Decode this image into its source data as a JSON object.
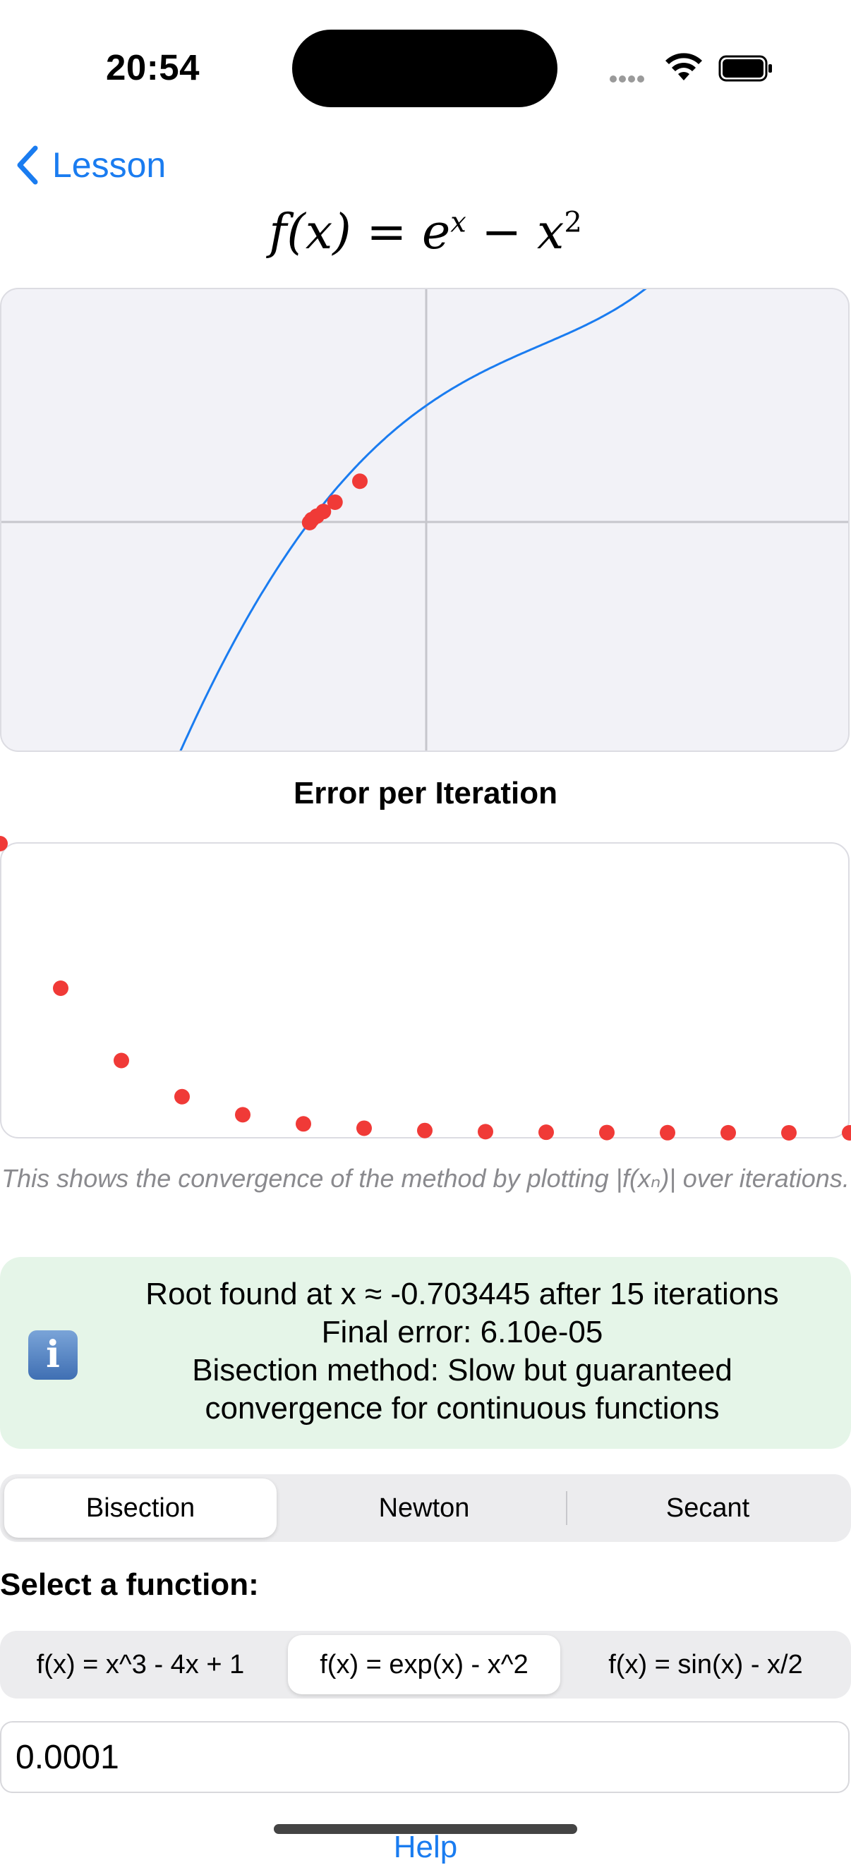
{
  "status_bar": {
    "time": "20:54"
  },
  "nav": {
    "back_label": "Lesson"
  },
  "formula": {
    "prefix": "f(x) = e",
    "exp": "x",
    "middle": " − x",
    "power": "2"
  },
  "function_plot": {
    "curve_color": "#1a7cf0",
    "point_color": "#f03a37",
    "iterate_points": [
      {
        "x": -0.703,
        "y": -0.005
      },
      {
        "x": -0.69,
        "y": 0.02
      },
      {
        "x": -0.66,
        "y": 0.05
      },
      {
        "x": -0.62,
        "y": 0.09
      },
      {
        "x": -0.55,
        "y": 0.17
      },
      {
        "x": -0.4,
        "y": 0.35
      }
    ]
  },
  "error_chart": {
    "title": "Error per Iteration",
    "caption": "This shows the convergence of the method by plotting |f(xₙ)| over iterations.",
    "chart_data": {
      "type": "scatter",
      "x": [
        0,
        1,
        2,
        3,
        4,
        5,
        6,
        7,
        8,
        9,
        10,
        11,
        12,
        13,
        14
      ],
      "values": [
        1.0,
        0.5,
        0.25,
        0.125,
        0.0625,
        0.031,
        0.016,
        0.008,
        0.004,
        0.002,
        0.001,
        0.0005,
        0.00025,
        0.00012,
        6e-05
      ],
      "point_color": "#f03a37"
    }
  },
  "info": {
    "icon": "info-icon",
    "lines": [
      "Root found at x ≈ -0.703445 after 15 iterations",
      "Final error: 6.10e-05",
      "Bisection method: Slow but guaranteed",
      "convergence for continuous functions"
    ]
  },
  "methods": {
    "selected": "Bisection",
    "options": [
      "Bisection",
      "Newton",
      "Secant"
    ]
  },
  "functions": {
    "label": "Select a function:",
    "selected": "f(x) = exp(x) - x^2",
    "options": [
      "f(x) = x^3 - 4x + 1",
      "f(x) = exp(x) - x^2",
      "f(x) = sin(x) - x/2"
    ]
  },
  "tolerance": {
    "value": "0.0001"
  },
  "help": {
    "label": "Help"
  }
}
